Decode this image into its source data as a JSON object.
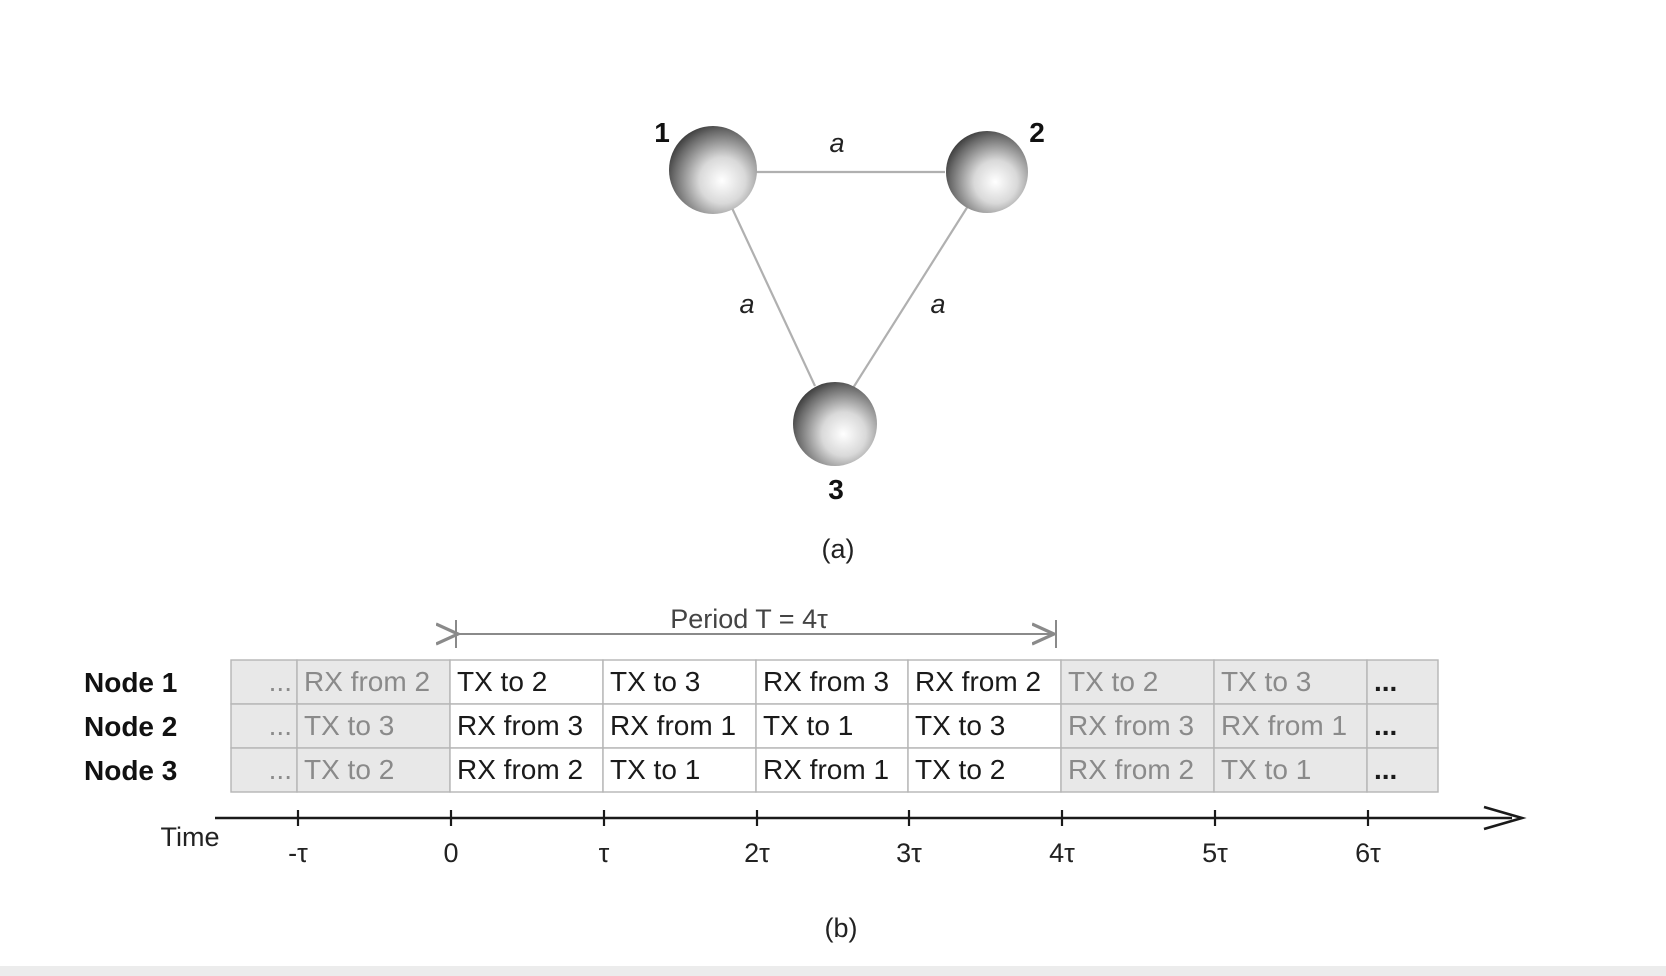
{
  "topology": {
    "nodes": [
      {
        "id": "1",
        "label": "1"
      },
      {
        "id": "2",
        "label": "2"
      },
      {
        "id": "3",
        "label": "3"
      }
    ],
    "edges": [
      {
        "from": "1",
        "to": "2",
        "label": "a"
      },
      {
        "from": "1",
        "to": "3",
        "label": "a"
      },
      {
        "from": "2",
        "to": "3",
        "label": "a"
      }
    ],
    "caption": "(a)"
  },
  "schedule": {
    "period_label": "Period T = 4τ",
    "rows": [
      {
        "label": "Node 1",
        "cells": [
          "...",
          "RX from 2",
          "TX to 2",
          "TX to 3",
          "RX from 3",
          "RX from 2",
          "TX to 2",
          "TX to 3",
          "..."
        ]
      },
      {
        "label": "Node 2",
        "cells": [
          "...",
          "TX to 3",
          "RX from 3",
          "RX from 1",
          "TX to 1",
          "TX to 3",
          "RX from 3",
          "RX from 1",
          "..."
        ]
      },
      {
        "label": "Node 3",
        "cells": [
          "...",
          "TX to 2",
          "RX from 2",
          "TX to 1",
          "RX from 1",
          "TX to 2",
          "RX from 2",
          "TX to 1",
          "..."
        ]
      }
    ],
    "axis_label": "Time",
    "ticks": [
      "-τ",
      "0",
      "τ",
      "2τ",
      "3τ",
      "4τ",
      "5τ",
      "6τ"
    ],
    "caption": "(b)",
    "colors": {
      "grey_cell": "#e8e8e8",
      "white_cell": "#ffffff",
      "grey_text": "#8a8a8a",
      "dark_text": "#1a1a1a",
      "border": "#b5b5b5"
    }
  }
}
